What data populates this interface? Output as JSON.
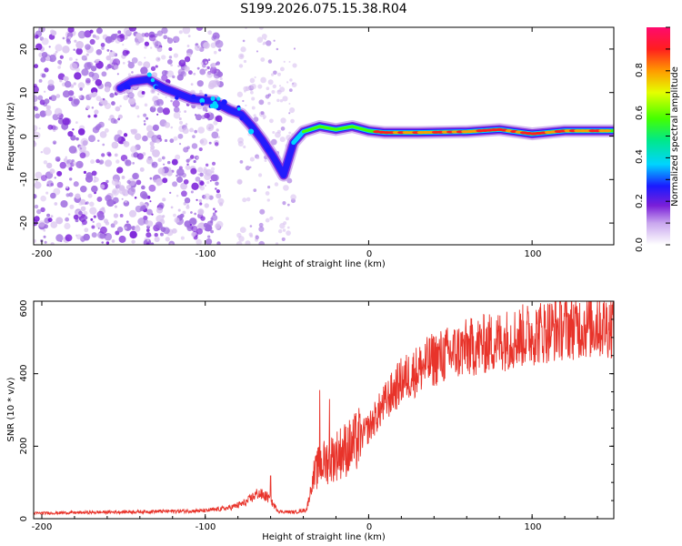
{
  "title": "S199.2026.075.15.38.R04",
  "colors": {
    "snr_line": "#e8332a",
    "scatter_faint": "#d9c2f0",
    "scatter_mid": "#a06de0",
    "scatter_strong": "#7a1fd8"
  },
  "chart_data": [
    {
      "type": "heatmap",
      "name": "spectrogram",
      "xlabel": "Height of straight line (km)",
      "ylabel": "Frequency (Hz)",
      "xlim": [
        -205,
        150
      ],
      "ylim": [
        -25,
        25
      ],
      "xticks": [
        -200,
        -100,
        0,
        100
      ],
      "yticks": [
        20,
        10,
        0,
        -10,
        -20
      ],
      "ridge": {
        "x": [
          -152,
          -145,
          -135,
          -125,
          -118,
          -108,
          -95,
          -85,
          -78,
          -72,
          -65,
          -58,
          -52,
          -46,
          -40,
          -30,
          -20,
          -10,
          0,
          10,
          30,
          60,
          80,
          90,
          100,
          120,
          150
        ],
        "y": [
          11,
          12.5,
          13,
          11,
          10,
          8.5,
          8,
          6,
          5,
          2.5,
          -1,
          -5,
          -9,
          -1.5,
          1,
          2.2,
          1.5,
          2.2,
          1.2,
          0.8,
          0.8,
          1.0,
          1.5,
          1.0,
          0.5,
          1.2,
          1.2
        ]
      },
      "colorbar": {
        "label": "Normalized spectral amplitude",
        "range": [
          0,
          1
        ],
        "ticks": [
          "0.0",
          "0.2",
          "0.4",
          "0.6",
          "0.8"
        ]
      }
    },
    {
      "type": "line",
      "name": "snr",
      "xlabel": "Height of straight line (km)",
      "ylabel": "SNR (10 * v/v)",
      "xlim": [
        -205,
        150
      ],
      "ylim": [
        0,
        600
      ],
      "xticks": [
        -200,
        -100,
        0,
        100
      ],
      "yticks": [
        0,
        200,
        400,
        600
      ],
      "trend": {
        "x": [
          -205,
          -160,
          -100,
          -85,
          -75,
          -68,
          -62,
          -55,
          -45,
          -38,
          -34,
          -30,
          -25,
          -20,
          -15,
          -10,
          0,
          10,
          20,
          40,
          60,
          80,
          100,
          120,
          150
        ],
        "y": [
          15,
          18,
          22,
          30,
          45,
          70,
          60,
          20,
          18,
          25,
          110,
          150,
          160,
          175,
          190,
          200,
          250,
          320,
          380,
          440,
          470,
          490,
          510,
          530,
          535
        ]
      },
      "peaks": [
        {
          "x": -60,
          "y": 118
        },
        {
          "x": -30,
          "y": 355
        },
        {
          "x": -24,
          "y": 330
        },
        {
          "x": 140,
          "y": 600
        }
      ]
    }
  ]
}
